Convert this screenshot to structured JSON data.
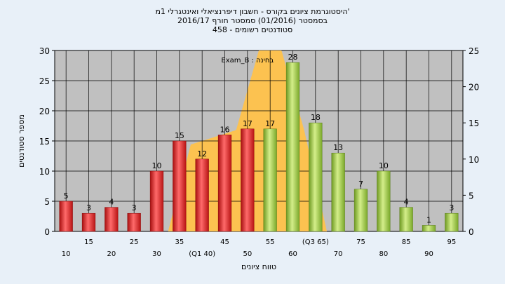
{
  "titles": {
    "line1": "היסטוגרמת ציונים בקורס - חשבון דיפרנציאלי ואינטגרלי 1מ'",
    "line2": "בסמסטר  (01/2016)  סמסטר חורף 2016/17",
    "line3": "סטודנטים רשומים - 458"
  },
  "chart_data": {
    "type": "bar",
    "annotation": "בחינה : Exam_B",
    "ylabel": "מספר סטודנטים",
    "xlabel": "טווח ציונים",
    "ylim_left": [
      0,
      30
    ],
    "yticks_left": [
      0,
      5,
      10,
      15,
      20,
      25,
      30
    ],
    "ylim_right": [
      0,
      25
    ],
    "yticks_right": [
      0,
      5,
      10,
      15,
      20,
      25
    ],
    "grid": true,
    "categories": [
      "10",
      "15",
      "20",
      "25",
      "30",
      "35",
      "(Q1 40)",
      "45",
      "50",
      "55",
      "60",
      "(Q3 65)",
      "70",
      "75",
      "80",
      "85",
      "90",
      "95"
    ],
    "values": [
      5,
      3,
      4,
      3,
      10,
      15,
      12,
      16,
      17,
      17,
      28,
      18,
      13,
      7,
      10,
      4,
      1,
      3
    ],
    "bar_colors": [
      "red",
      "red",
      "red",
      "red",
      "red",
      "red",
      "red",
      "red",
      "red",
      "green",
      "green",
      "green",
      "green",
      "green",
      "green",
      "green",
      "green",
      "green"
    ],
    "area_series": {
      "name": "",
      "color": "#ffc24a",
      "points": [
        [
          5,
          0
        ],
        [
          6,
          12
        ],
        [
          7,
          13
        ],
        [
          8,
          14
        ],
        [
          9,
          25
        ],
        [
          10,
          25
        ],
        [
          11,
          14
        ],
        [
          12,
          0
        ]
      ]
    }
  },
  "colors": {
    "plot_bg": "#c0c0c0",
    "red_bar": "#e02424",
    "green_bar": "#94c23a",
    "grid": "#000000"
  }
}
